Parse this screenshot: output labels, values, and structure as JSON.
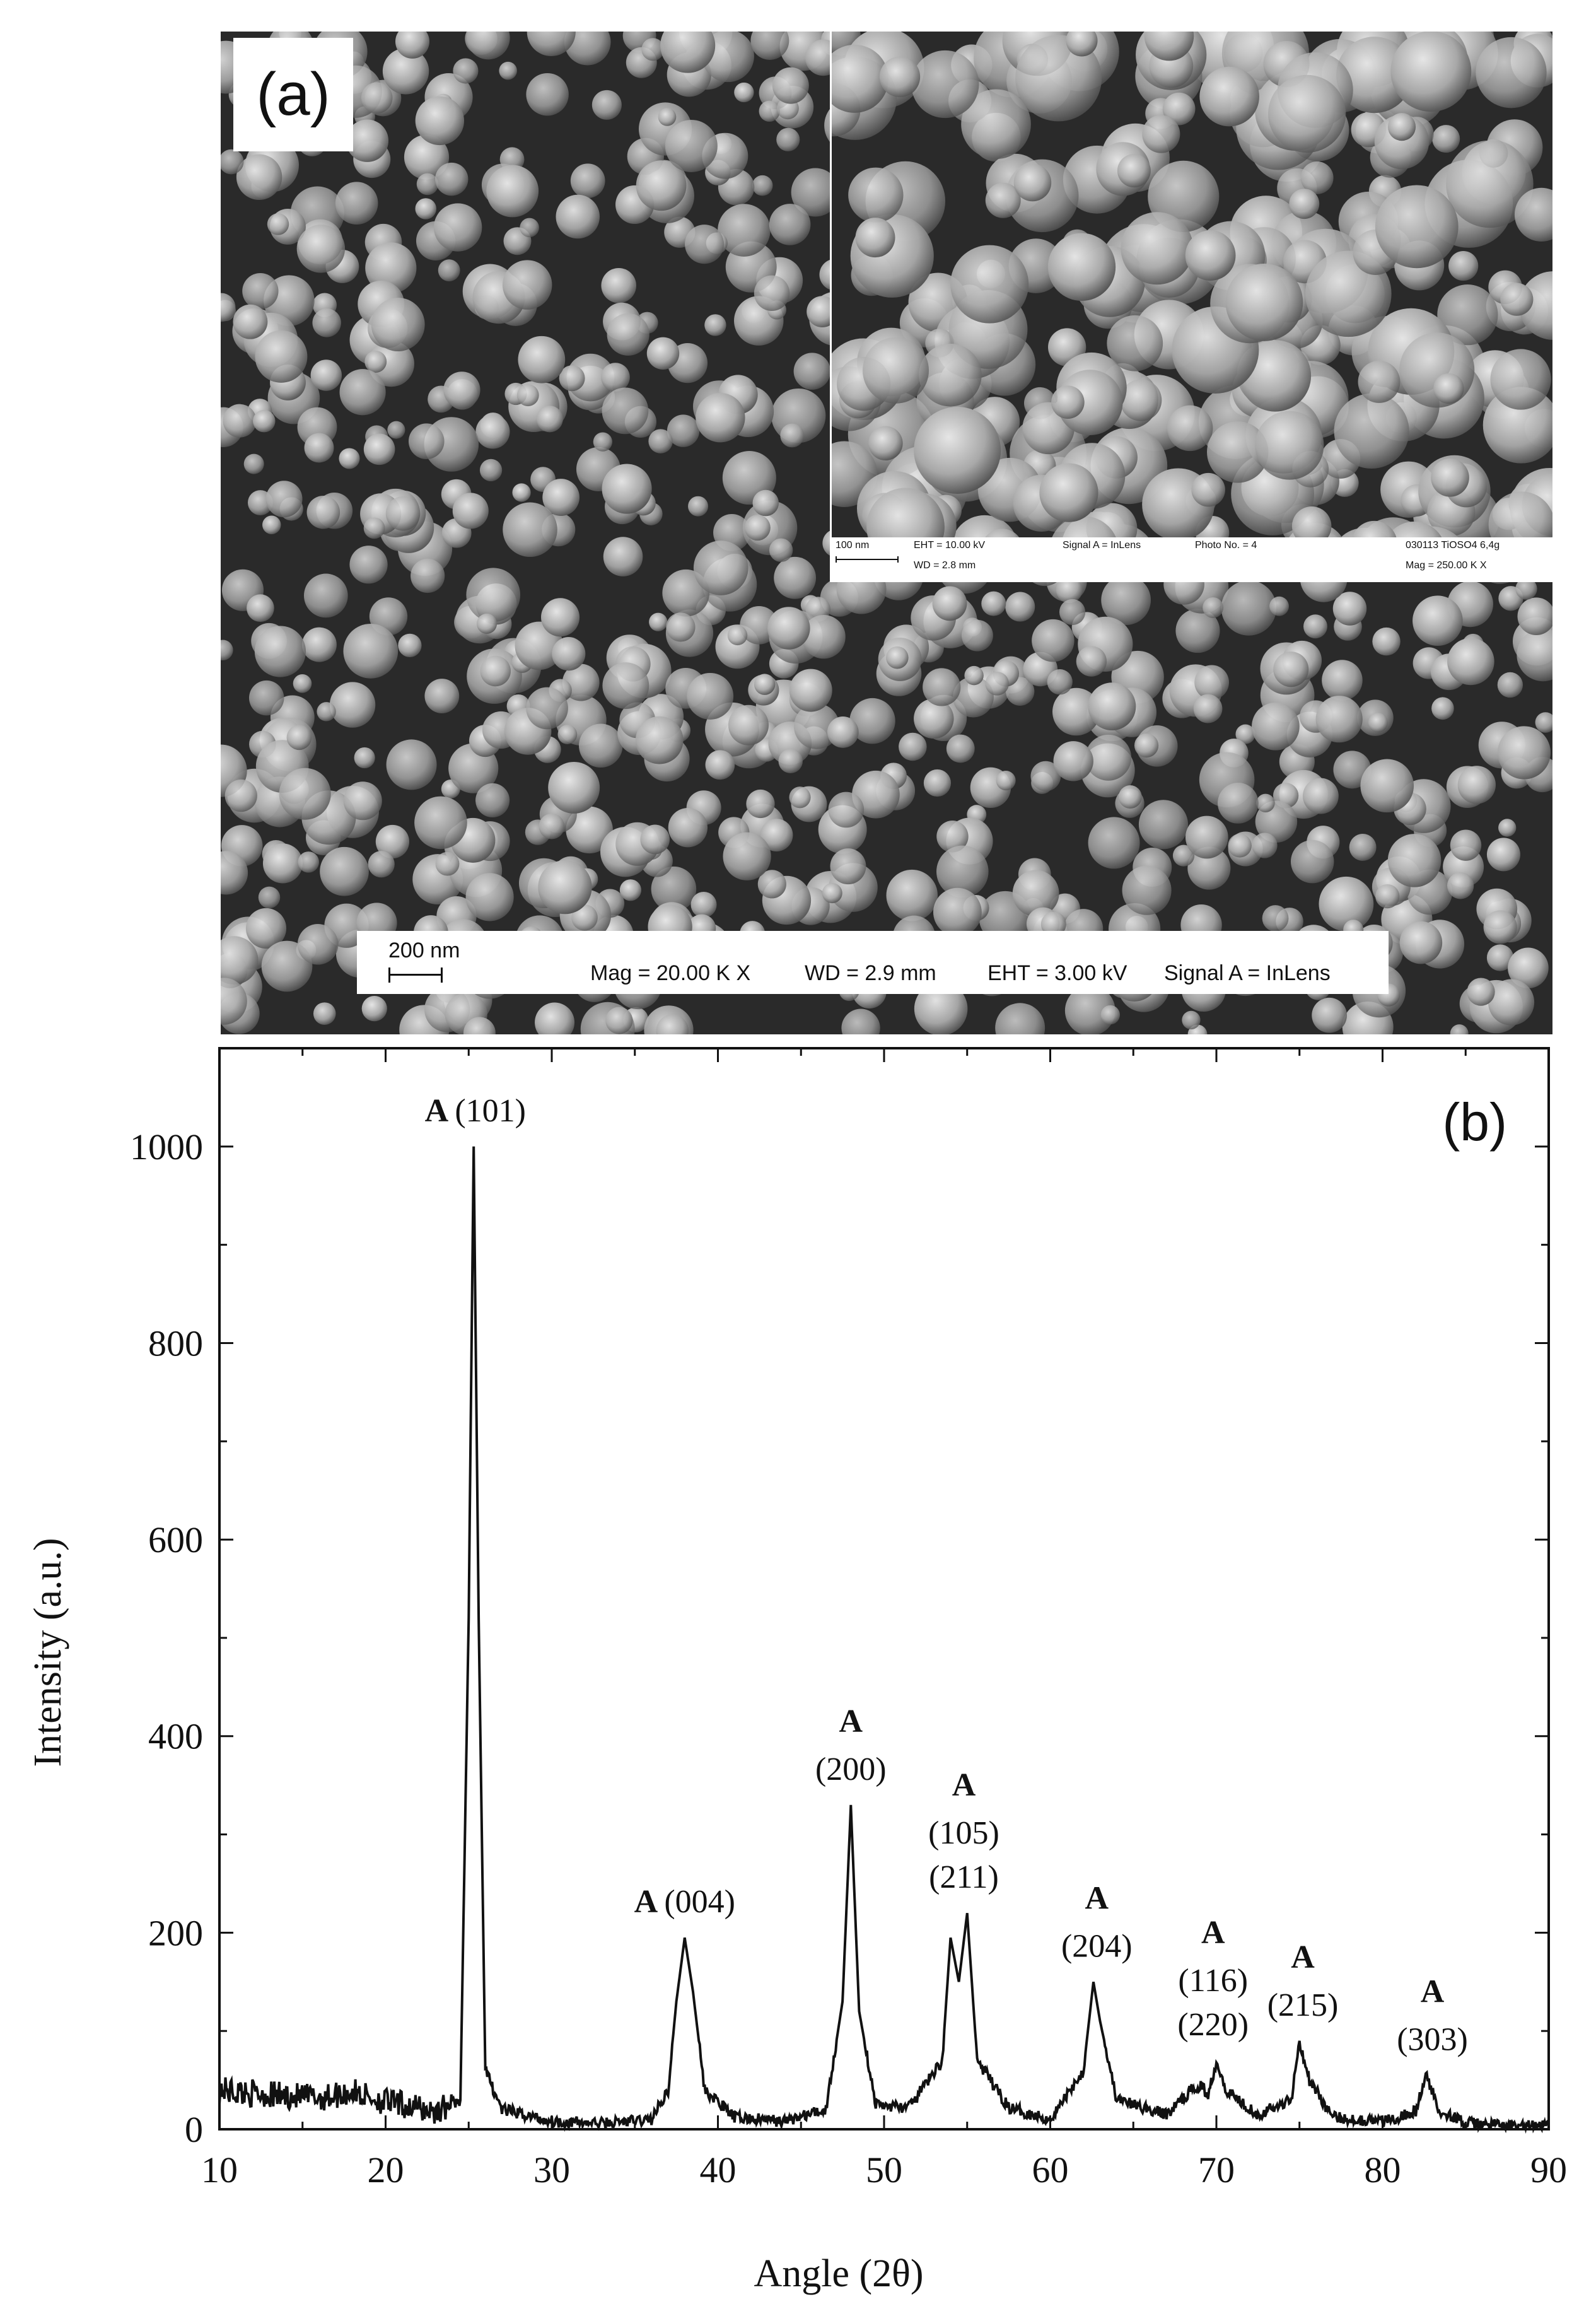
{
  "panel_a": {
    "label": "(a)",
    "main_info": {
      "scale": "200 nm",
      "mag": "Mag = 20.00 K X",
      "wd": "WD = 2.9 mm",
      "eht": "EHT = 3.00 kV",
      "signal": "Signal A = InLens"
    },
    "inset_info": {
      "scale": "100 nm",
      "eht": "EHT = 10.00 kV",
      "wd": "WD = 2.8 mm",
      "signal": "Signal A = InLens",
      "photo": "Photo No. = 4",
      "sample": "030113 TiOSO4 6,4g",
      "mag": "Mag = 250.00 K X"
    }
  },
  "chart_data": {
    "type": "line",
    "panel_label": "(b)",
    "xlabel": "Angle (2θ)",
    "ylabel": "Intensity (a.u.)",
    "xlim": [
      10,
      90
    ],
    "ylim": [
      0,
      1100
    ],
    "x_ticks": [
      10,
      20,
      30,
      40,
      50,
      60,
      70,
      80,
      90
    ],
    "y_ticks": [
      0,
      200,
      400,
      600,
      800,
      1000
    ],
    "series": [
      {
        "x": [
          10,
          13,
          16,
          18,
          20,
          23,
          24.5,
          25.0,
          25.3,
          25.6,
          26.0,
          27,
          30,
          33,
          36,
          37.0,
          37.5,
          38.0,
          38.5,
          39.2,
          41,
          44,
          46.5,
          47.5,
          48.0,
          48.5,
          49.5,
          51.5,
          53.5,
          54.0,
          54.5,
          55.0,
          55.6,
          57.5,
          60,
          62.0,
          62.6,
          63.0,
          64.0,
          67,
          68.5,
          69.0,
          69.5,
          70.0,
          70.6,
          72.5,
          74.5,
          75.0,
          75.6,
          77,
          80,
          82.0,
          82.6,
          83.4,
          85,
          88,
          90
        ],
        "y": [
          40,
          35,
          32,
          38,
          28,
          18,
          30,
          520,
          1000,
          520,
          60,
          20,
          8,
          6,
          10,
          40,
          130,
          195,
          140,
          40,
          12,
          8,
          20,
          130,
          330,
          120,
          25,
          22,
          70,
          195,
          150,
          220,
          70,
          22,
          10,
          60,
          150,
          110,
          30,
          15,
          40,
          45,
          35,
          70,
          40,
          15,
          30,
          90,
          50,
          12,
          8,
          18,
          55,
          20,
          6,
          3,
          3
        ]
      }
    ],
    "annotations": [
      {
        "x": 25.4,
        "bold": "A",
        "lines": [
          "(101)"
        ],
        "inline": true
      },
      {
        "x": 38.0,
        "bold": "A",
        "lines": [
          "(004)"
        ],
        "inline": true
      },
      {
        "x": 48.0,
        "bold": "A",
        "lines": [
          "(200)"
        ],
        "inline": false
      },
      {
        "x": 54.8,
        "bold": "A",
        "lines": [
          "(105)",
          "(211)"
        ],
        "inline": false
      },
      {
        "x": 62.8,
        "bold": "A",
        "lines": [
          "(204)"
        ],
        "inline": false
      },
      {
        "x": 69.8,
        "bold": "A",
        "lines": [
          "(116)",
          "(220)"
        ],
        "inline": false
      },
      {
        "x": 75.2,
        "bold": "A",
        "lines": [
          "(215)"
        ],
        "inline": false
      },
      {
        "x": 83.0,
        "bold": "A",
        "lines": [
          "(303)"
        ],
        "inline": false
      }
    ]
  }
}
